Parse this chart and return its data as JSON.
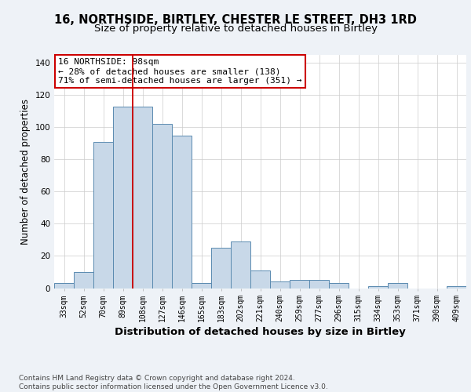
{
  "title": "16, NORTHSIDE, BIRTLEY, CHESTER LE STREET, DH3 1RD",
  "subtitle": "Size of property relative to detached houses in Birtley",
  "xlabel": "Distribution of detached houses by size in Birtley",
  "ylabel": "Number of detached properties",
  "bin_labels": [
    "33sqm",
    "52sqm",
    "70sqm",
    "89sqm",
    "108sqm",
    "127sqm",
    "146sqm",
    "165sqm",
    "183sqm",
    "202sqm",
    "221sqm",
    "240sqm",
    "259sqm",
    "277sqm",
    "296sqm",
    "315sqm",
    "334sqm",
    "353sqm",
    "371sqm",
    "390sqm",
    "409sqm"
  ],
  "bar_values": [
    3,
    10,
    91,
    113,
    113,
    102,
    95,
    3,
    25,
    29,
    11,
    4,
    5,
    5,
    3,
    0,
    1,
    3,
    0,
    0,
    1
  ],
  "bar_color": "#c8d8e8",
  "bar_edge_color": "#5a8ab0",
  "vline_x": 3.5,
  "vline_color": "#cc0000",
  "annotation_text": "16 NORTHSIDE: 98sqm\n← 28% of detached houses are smaller (138)\n71% of semi-detached houses are larger (351) →",
  "annotation_box_color": "white",
  "annotation_box_edge": "#cc0000",
  "ylim": [
    0,
    145
  ],
  "yticks": [
    0,
    20,
    40,
    60,
    80,
    100,
    120,
    140
  ],
  "background_color": "#eef2f7",
  "plot_background": "white",
  "grid_color": "#cccccc",
  "footer_text": "Contains HM Land Registry data © Crown copyright and database right 2024.\nContains public sector information licensed under the Open Government Licence v3.0.",
  "title_fontsize": 10.5,
  "subtitle_fontsize": 9.5,
  "xlabel_fontsize": 9.5,
  "ylabel_fontsize": 8.5,
  "tick_fontsize": 7,
  "annotation_fontsize": 8,
  "footer_fontsize": 6.5
}
